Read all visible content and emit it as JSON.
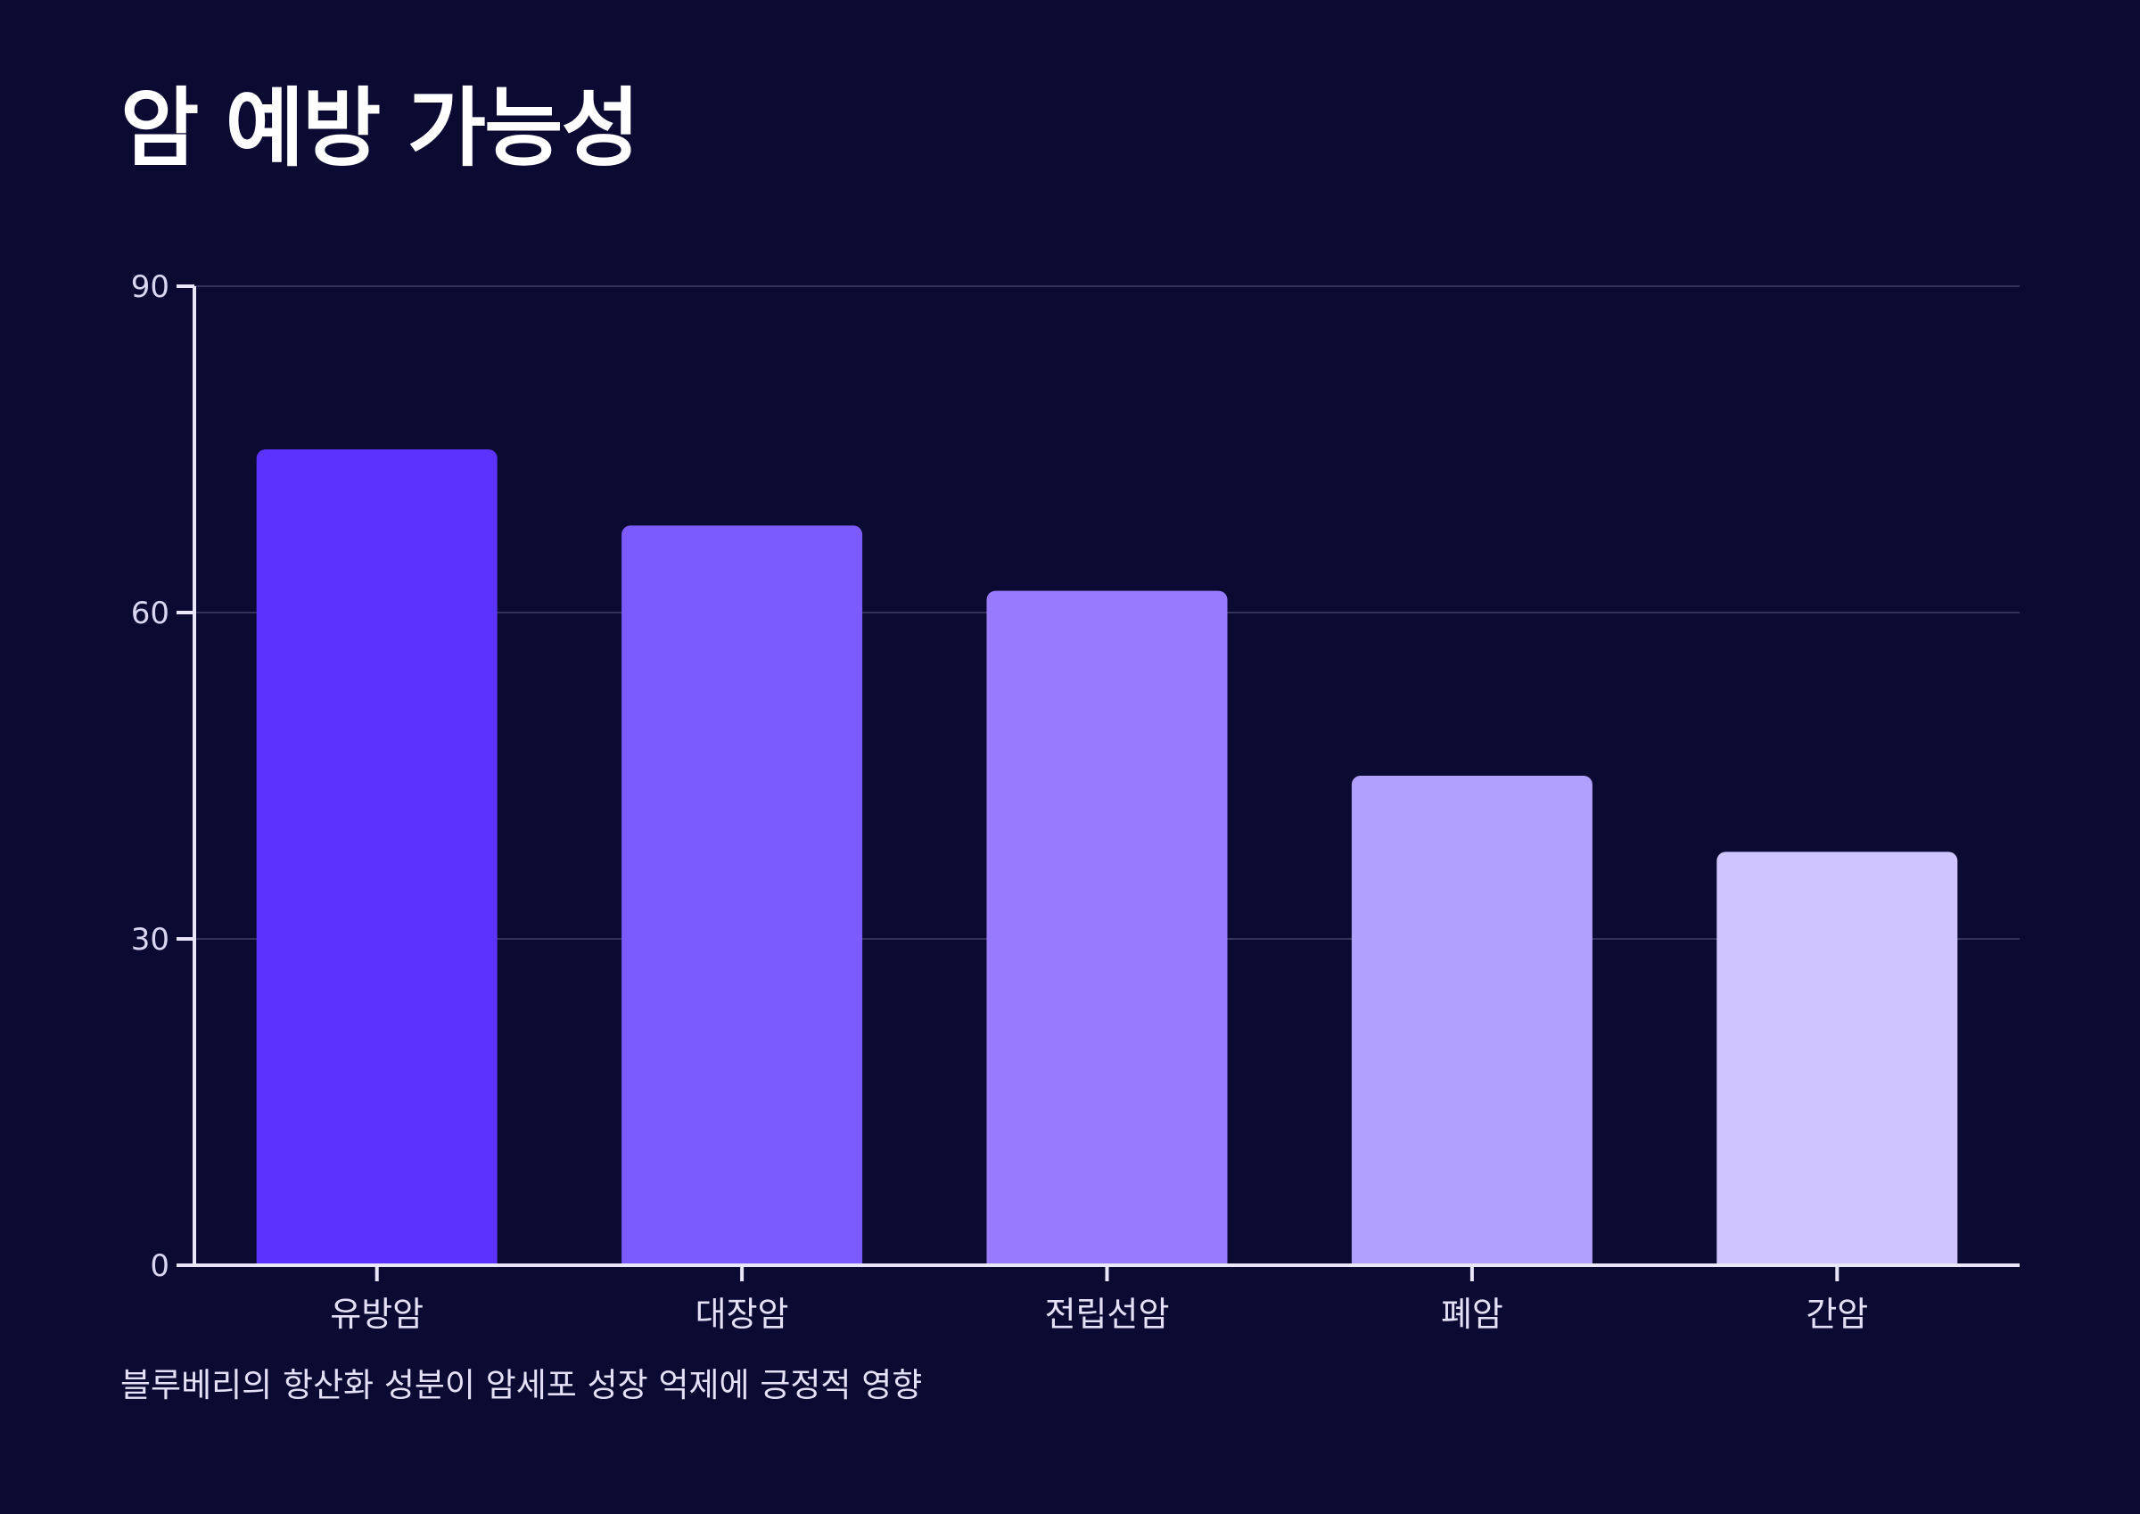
{
  "colors": {
    "background": "#0b0a33",
    "grid": "#34325c",
    "axis": "#e8e6f8",
    "bars": [
      "#5b32fe",
      "#7b5bfe",
      "#987aff",
      "#b2a0ff",
      "#cfc4ff"
    ]
  },
  "chart_data": {
    "type": "bar",
    "title": "암 예방 가능성",
    "caption": "블루베리의 항산화 성분이 암세포 성장 억제에 긍정적 영향",
    "categories": [
      "유방암",
      "대장암",
      "전립선암",
      "폐암",
      "간암"
    ],
    "values": [
      75,
      68,
      62,
      45,
      38
    ],
    "ylim": [
      0,
      90
    ],
    "yticks": [
      0,
      30,
      60,
      90
    ],
    "grid": true,
    "legend": "none"
  }
}
